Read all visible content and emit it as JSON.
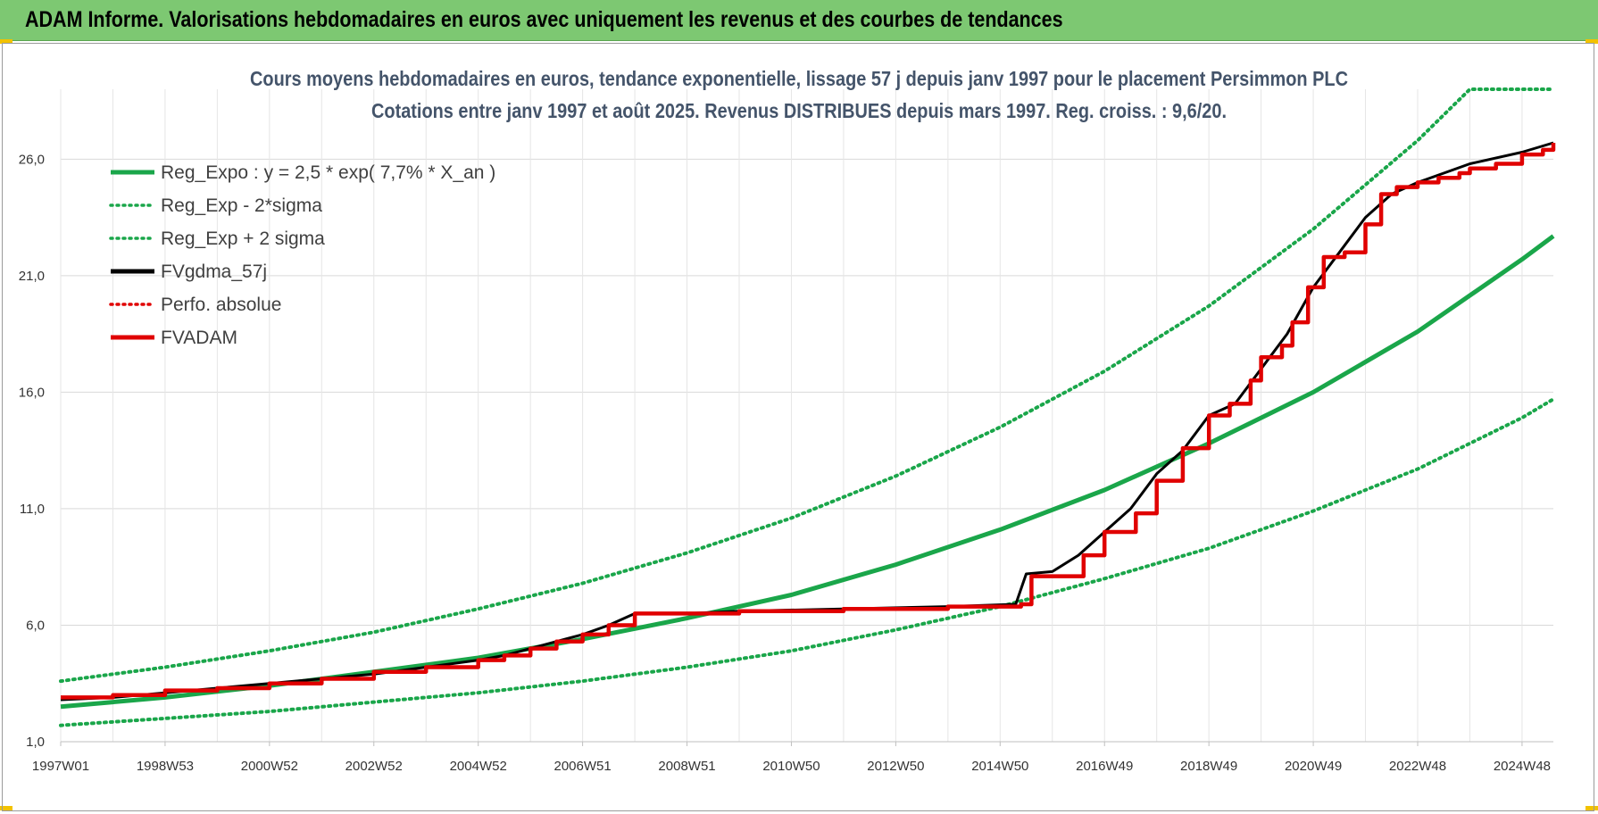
{
  "header": {
    "banner_title": "ADAM Informe. Valorisations hebdomadaires en euros avec uniquement les revenus et des courbes de tendances"
  },
  "chart_data": {
    "type": "line",
    "title_line1": "Cours moyens hebdomadaires en euros, tendance exponentielle, lissage 57 j depuis janv 1997  pour le placement Persimmon PLC",
    "title_line2": "Cotations entre janv 1997 et août 2025. Revenus DISTRIBUES depuis mars 1997. Reg. croiss. : 9,6/20.",
    "xlabel": "",
    "ylabel": "",
    "x_range_years": [
      1997.0,
      2025.6
    ],
    "ylim": [
      1.0,
      29.0
    ],
    "y_ticks": [
      "1,0",
      "6,0",
      "11,0",
      "16,0",
      "21,0",
      "26,0"
    ],
    "y_tick_values": [
      1,
      6,
      11,
      16,
      21,
      26
    ],
    "x_ticks": [
      "1997W01",
      "1998W53",
      "2000W52",
      "2002W52",
      "2004W52",
      "2006W51",
      "2008W51",
      "2010W50",
      "2012W50",
      "2014W50",
      "2016W49",
      "2018W49",
      "2020W49",
      "2022W48",
      "2024W48"
    ],
    "x_tick_years": [
      1997.0,
      1999.0,
      2001.0,
      2003.0,
      2005.0,
      2007.0,
      2009.0,
      2011.0,
      2013.0,
      2015.0,
      2017.0,
      2019.0,
      2021.0,
      2023.0,
      2025.0
    ],
    "grid": true,
    "legend_position": "top-left",
    "series": [
      {
        "name": "Reg_Expo : y = 2,5 * exp( 7,7% *  X_an )",
        "color": "#1aa64a",
        "style": "solid",
        "x": [
          1997.0,
          1999.0,
          2001.0,
          2003.0,
          2005.0,
          2007.0,
          2009.0,
          2011.0,
          2013.0,
          2015.0,
          2017.0,
          2019.0,
          2021.0,
          2023.0,
          2025.0,
          2025.6
        ],
        "y": [
          2.5,
          2.9,
          3.4,
          4.0,
          4.6,
          5.4,
          6.3,
          7.3,
          8.6,
          10.1,
          11.8,
          13.8,
          16.0,
          18.6,
          21.7,
          22.7
        ]
      },
      {
        "name": "Reg_Exp - 2*sigma",
        "color": "#1aa64a",
        "style": "dotted",
        "x": [
          1997.0,
          1999.0,
          2001.0,
          2003.0,
          2005.0,
          2007.0,
          2009.0,
          2011.0,
          2013.0,
          2015.0,
          2017.0,
          2019.0,
          2021.0,
          2023.0,
          2025.0,
          2025.6
        ],
        "y": [
          1.7,
          2.0,
          2.3,
          2.7,
          3.1,
          3.6,
          4.2,
          4.9,
          5.8,
          6.8,
          8.0,
          9.3,
          10.9,
          12.7,
          14.9,
          15.7
        ]
      },
      {
        "name": "Reg_Exp + 2 sigma",
        "color": "#1aa64a",
        "style": "dotted",
        "x": [
          1997.0,
          1999.0,
          2001.0,
          2003.0,
          2005.0,
          2007.0,
          2009.0,
          2011.0,
          2013.0,
          2015.0,
          2017.0,
          2019.0,
          2021.0,
          2023.0,
          2024.0,
          2025.6
        ],
        "y": [
          3.6,
          4.2,
          4.9,
          5.7,
          6.7,
          7.8,
          9.1,
          10.6,
          12.4,
          14.5,
          16.9,
          19.7,
          23.0,
          26.8,
          29.0,
          29.0
        ]
      },
      {
        "name": "FVgdma_57j",
        "color": "#000000",
        "style": "solid",
        "x": [
          1997.0,
          1998.0,
          1999.0,
          2000.0,
          2001.0,
          2002.0,
          2003.0,
          2004.0,
          2005.0,
          2005.5,
          2006.0,
          2006.5,
          2007.0,
          2007.5,
          2008.0,
          2009.0,
          2010.0,
          2012.0,
          2014.0,
          2015.3,
          2015.5,
          2016.0,
          2016.5,
          2017.0,
          2017.5,
          2018.0,
          2018.5,
          2019.0,
          2019.5,
          2020.0,
          2020.5,
          2021.0,
          2021.5,
          2022.0,
          2022.5,
          2023.0,
          2023.5,
          2024.0,
          2025.0,
          2025.6
        ],
        "y": [
          2.8,
          2.9,
          3.1,
          3.3,
          3.5,
          3.7,
          3.9,
          4.2,
          4.5,
          4.7,
          5.0,
          5.3,
          5.6,
          6.0,
          6.5,
          6.5,
          6.6,
          6.7,
          6.8,
          6.9,
          8.2,
          8.3,
          9.0,
          10.0,
          11.0,
          12.5,
          13.5,
          15.0,
          15.5,
          17.0,
          18.5,
          20.5,
          22.0,
          23.5,
          24.5,
          25.0,
          25.4,
          25.8,
          26.3,
          26.7
        ]
      },
      {
        "name": "Perfo. absolue",
        "color": "#e00000",
        "style": "dotted",
        "x": [],
        "y": []
      },
      {
        "name": "FVADAM",
        "color": "#e00000",
        "style": "step",
        "x": [
          1997.0,
          1998.0,
          1999.0,
          2000.0,
          2001.0,
          2002.0,
          2003.0,
          2004.0,
          2005.0,
          2005.5,
          2006.0,
          2006.5,
          2007.0,
          2007.5,
          2008.0,
          2009.0,
          2010.0,
          2012.0,
          2014.0,
          2015.4,
          2015.6,
          2016.0,
          2016.6,
          2017.0,
          2017.6,
          2018.0,
          2018.5,
          2019.0,
          2019.4,
          2019.8,
          2020.0,
          2020.4,
          2020.6,
          2020.9,
          2021.2,
          2021.6,
          2022.0,
          2022.3,
          2022.6,
          2023.0,
          2023.4,
          2023.8,
          2024.0,
          2024.5,
          2025.0,
          2025.4,
          2025.6
        ],
        "y": [
          2.9,
          3.0,
          3.2,
          3.3,
          3.5,
          3.7,
          4.0,
          4.2,
          4.5,
          4.7,
          5.0,
          5.3,
          5.6,
          6.0,
          6.5,
          6.5,
          6.6,
          6.7,
          6.8,
          6.9,
          8.1,
          8.1,
          9.0,
          10.0,
          10.8,
          12.2,
          13.6,
          15.0,
          15.5,
          16.5,
          17.5,
          18.0,
          19.0,
          20.5,
          21.8,
          22.0,
          23.2,
          24.5,
          24.8,
          25.0,
          25.2,
          25.4,
          25.6,
          25.8,
          26.2,
          26.4,
          26.7
        ]
      }
    ]
  }
}
